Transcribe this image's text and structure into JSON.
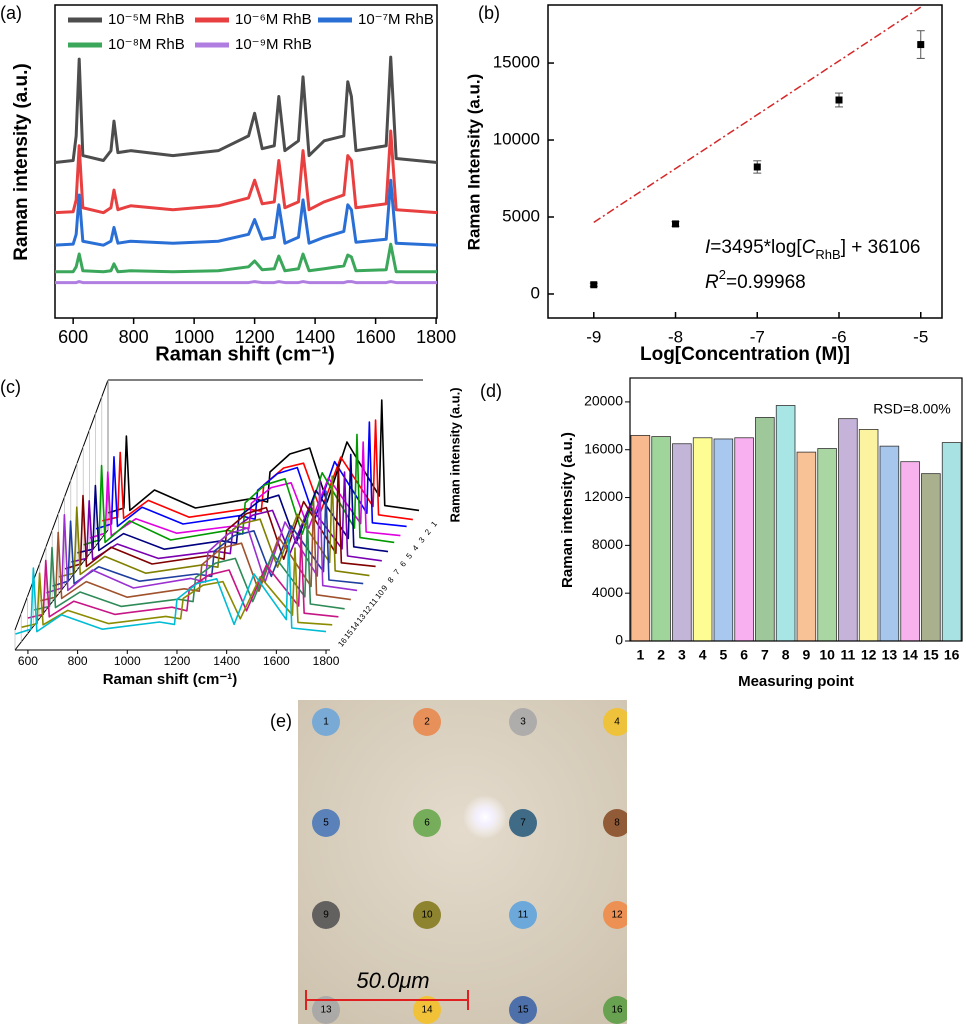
{
  "chart_data": [
    {
      "type": "line",
      "label": "(a)",
      "xlabel": "Raman shift (cm⁻¹)",
      "ylabel": "Raman intensity (a.u.)",
      "x": [
        540,
        600,
        610,
        620,
        632,
        700,
        725,
        735,
        748,
        790,
        930,
        1080,
        1180,
        1200,
        1225,
        1265,
        1280,
        1300,
        1345,
        1360,
        1380,
        1430,
        1495,
        1508,
        1520,
        1535,
        1635,
        1650,
        1668,
        1803
      ],
      "xlim": [
        540,
        1803
      ],
      "xticks": [
        600,
        800,
        1000,
        1200,
        1400,
        1600,
        1800
      ],
      "ylim": [
        0,
        318
      ],
      "series": [
        {
          "name": "10⁻⁵M RhB",
          "color": "#4d4d4d",
          "values": [
            158,
            160,
            185,
            263,
            165,
            160,
            170,
            200,
            168,
            170,
            165,
            170,
            185,
            208,
            172,
            175,
            225,
            170,
            180,
            245,
            165,
            180,
            185,
            240,
            225,
            170,
            175,
            265,
            162,
            158
          ]
        },
        {
          "name": "10⁻⁶M RhB",
          "color": "#e84040",
          "values": [
            107,
            108,
            120,
            175,
            112,
            107,
            112,
            130,
            110,
            114,
            110,
            114,
            122,
            140,
            116,
            118,
            160,
            112,
            118,
            170,
            110,
            118,
            125,
            165,
            160,
            112,
            116,
            190,
            110,
            107
          ]
        },
        {
          "name": "10⁻⁷M RhB",
          "color": "#2a6fd6",
          "values": [
            74,
            75,
            85,
            125,
            78,
            74,
            78,
            92,
            76,
            78,
            76,
            78,
            85,
            100,
            80,
            82,
            115,
            76,
            82,
            120,
            76,
            82,
            88,
            115,
            110,
            77,
            80,
            140,
            76,
            74
          ]
        },
        {
          "name": "10⁻⁸M RhB",
          "color": "#3aa75a",
          "values": [
            47,
            47,
            52,
            65,
            48,
            47,
            48,
            55,
            47,
            48,
            47,
            48,
            52,
            58,
            49,
            50,
            63,
            48,
            50,
            65,
            48,
            50,
            53,
            64,
            62,
            48,
            49,
            75,
            47,
            47
          ]
        },
        {
          "name": "10⁻⁹M RhB",
          "color": "#b07ee0",
          "values": [
            36,
            36,
            36,
            37,
            36,
            36,
            36,
            36,
            36,
            36,
            36,
            36,
            36,
            37,
            36,
            36,
            37,
            36,
            36,
            37,
            36,
            36,
            36,
            37,
            37,
            36,
            36,
            37,
            36,
            36
          ]
        }
      ]
    },
    {
      "type": "scatter",
      "label": "(b)",
      "xlabel": "Log[Concentration (M)]",
      "ylabel": "Raman Intensity (a.u.)",
      "x": [
        -9,
        -8,
        -7,
        -6,
        -5
      ],
      "values": [
        600,
        4550,
        8250,
        12600,
        16200
      ],
      "errors": [
        100,
        150,
        400,
        450,
        900
      ],
      "color": "#000000",
      "xlim": [
        -9.56,
        -4.74
      ],
      "xticks": [
        -9,
        -8,
        -7,
        -6,
        -5
      ],
      "ylim": [
        -1560,
        18770
      ],
      "yticks": [
        0,
        5000,
        10000,
        15000
      ],
      "fit": {
        "slope": 3495,
        "intercept": 36106,
        "color": "#d62728"
      },
      "annotations": [
        [
          "I",
          "=3495*log[",
          "C",
          "RhB",
          "] + 36106"
        ],
        [
          "R",
          "2",
          "=0.99968"
        ]
      ]
    },
    {
      "type": "waterfall",
      "label": "(c)",
      "xlabel": "Raman shift (cm⁻¹)",
      "ylabel": "Raman intensity (a.u.)",
      "x": [
        550,
        612,
        622,
        636,
        735,
        900,
        1130,
        1190,
        1200,
        1280,
        1360,
        1430,
        1510,
        1640,
        1650,
        1662,
        1800
      ],
      "xlim": [
        548,
        1816
      ],
      "xticks": [
        600,
        800,
        1000,
        1200,
        1400,
        1600,
        1800
      ],
      "series": [
        {
          "name": "1",
          "color": "#000000",
          "values": [
            6,
            10,
            70,
            8,
            25,
            10,
            18,
            15,
            40,
            55,
            60,
            15,
            65,
            20,
            100,
            12,
            8
          ]
        },
        {
          "name": "2",
          "color": "#ff0000",
          "values": [
            6,
            9,
            63,
            8,
            23,
            9,
            16,
            14,
            36,
            50,
            54,
            14,
            59,
            18,
            90,
            11,
            7
          ]
        },
        {
          "name": "3",
          "color": "#0000ff",
          "values": [
            6,
            10,
            66,
            8,
            24,
            10,
            17,
            14,
            38,
            52,
            57,
            14,
            62,
            19,
            95,
            11,
            8
          ]
        },
        {
          "name": "4",
          "color": "#e000e0",
          "values": [
            5,
            9,
            60,
            7,
            21,
            9,
            15,
            13,
            34,
            47,
            51,
            13,
            55,
            17,
            85,
            10,
            7
          ]
        },
        {
          "name": "5",
          "color": "#009900",
          "values": [
            6,
            10,
            72,
            8,
            26,
            10,
            18,
            15,
            41,
            56,
            61,
            15,
            66,
            20,
            98,
            12,
            8
          ]
        },
        {
          "name": "6",
          "color": "#000080",
          "values": [
            6,
            9,
            62,
            8,
            22,
            9,
            16,
            14,
            36,
            49,
            54,
            14,
            58,
            18,
            88,
            11,
            7
          ]
        },
        {
          "name": "7",
          "color": "#7b00b0",
          "values": [
            5,
            8,
            56,
            7,
            20,
            8,
            14,
            12,
            32,
            44,
            48,
            12,
            52,
            16,
            80,
            10,
            6
          ]
        },
        {
          "name": "8",
          "color": "#800000",
          "values": [
            6,
            10,
            67,
            8,
            24,
            10,
            17,
            14,
            38,
            52,
            57,
            14,
            62,
            19,
            93,
            11,
            8
          ]
        },
        {
          "name": "9",
          "color": "#808000",
          "values": [
            6,
            9,
            64,
            8,
            23,
            9,
            16,
            14,
            36,
            50,
            54,
            14,
            58,
            18,
            90,
            11,
            7
          ]
        },
        {
          "name": "10",
          "color": "#1f3fa0",
          "values": [
            5,
            9,
            59,
            7,
            21,
            9,
            15,
            13,
            34,
            47,
            51,
            13,
            55,
            17,
            84,
            10,
            7
          ]
        },
        {
          "name": "11",
          "color": "#9a30d0",
          "values": [
            6,
            10,
            71,
            8,
            25,
            10,
            18,
            15,
            40,
            55,
            60,
            15,
            65,
            20,
            99,
            12,
            8
          ]
        },
        {
          "name": "12",
          "color": "#a0522d",
          "values": [
            6,
            9,
            63,
            8,
            22,
            9,
            16,
            14,
            36,
            50,
            54,
            14,
            59,
            18,
            89,
            11,
            7
          ]
        },
        {
          "name": "13",
          "color": "#2e8b57",
          "values": [
            5,
            8,
            57,
            7,
            20,
            8,
            14,
            12,
            32,
            44,
            48,
            12,
            52,
            16,
            81,
            10,
            6
          ]
        },
        {
          "name": "14",
          "color": "#c71585",
          "values": [
            5,
            8,
            53,
            6,
            19,
            8,
            14,
            11,
            30,
            41,
            45,
            11,
            49,
            15,
            75,
            9,
            6
          ]
        },
        {
          "name": "15",
          "color": "#8b8b00",
          "values": [
            4,
            7,
            49,
            6,
            18,
            7,
            13,
            11,
            28,
            39,
            42,
            11,
            46,
            14,
            70,
            8,
            6
          ]
        },
        {
          "name": "16",
          "color": "#00bcd4",
          "values": [
            5,
            9,
            60,
            7,
            21,
            9,
            15,
            13,
            34,
            47,
            51,
            13,
            55,
            17,
            85,
            10,
            7
          ]
        }
      ]
    },
    {
      "type": "bar",
      "label": "(d)",
      "xlabel": "Measuring point",
      "ylabel": "Raman intensity (a.u.)",
      "annotation": "RSD=8.00%",
      "categories": [
        "1",
        "2",
        "3",
        "4",
        "5",
        "6",
        "7",
        "8",
        "9",
        "10",
        "11",
        "12",
        "13",
        "14",
        "15",
        "16"
      ],
      "values": [
        17200,
        17100,
        16500,
        17000,
        16900,
        17000,
        18700,
        19700,
        15800,
        16100,
        18600,
        17700,
        16300,
        15000,
        14000,
        16600
      ],
      "colors": [
        "#f9b98f",
        "#9fd49a",
        "#c3b5d8",
        "#fdfd94",
        "#a9c8f0",
        "#f9b0f0",
        "#9ec89a",
        "#a8e6e6",
        "#f9c196",
        "#a9d6a2",
        "#c5b3d9",
        "#fbf3a0",
        "#a6c6ec",
        "#f7b2ee",
        "#a8b08e",
        "#a8e2e2"
      ],
      "ylim": [
        0,
        22000
      ],
      "yticks": [
        0,
        4000,
        8000,
        12000,
        16000,
        20000
      ]
    },
    {
      "type": "image",
      "label": "(e)",
      "scale_bar": "50.0μm",
      "points": [
        {
          "label": "1",
          "color": "#6fa6d8"
        },
        {
          "label": "2",
          "color": "#e8884e"
        },
        {
          "label": "3",
          "color": "#a9a9a9"
        },
        {
          "label": "4",
          "color": "#f2c12e"
        },
        {
          "label": "5",
          "color": "#4d79b8"
        },
        {
          "label": "6",
          "color": "#6aa84f"
        },
        {
          "label": "7",
          "color": "#2f5f7f"
        },
        {
          "label": "8",
          "color": "#8b4f2a"
        },
        {
          "label": "9",
          "color": "#555555"
        },
        {
          "label": "10",
          "color": "#857a1e"
        },
        {
          "label": "11",
          "color": "#5fa3dc"
        },
        {
          "label": "12",
          "color": "#ef8a48"
        },
        {
          "label": "13",
          "color": "#a6a6a6"
        },
        {
          "label": "14",
          "color": "#f4c12a"
        },
        {
          "label": "15",
          "color": "#3e66aa"
        },
        {
          "label": "16",
          "color": "#5c9f46"
        }
      ]
    }
  ]
}
